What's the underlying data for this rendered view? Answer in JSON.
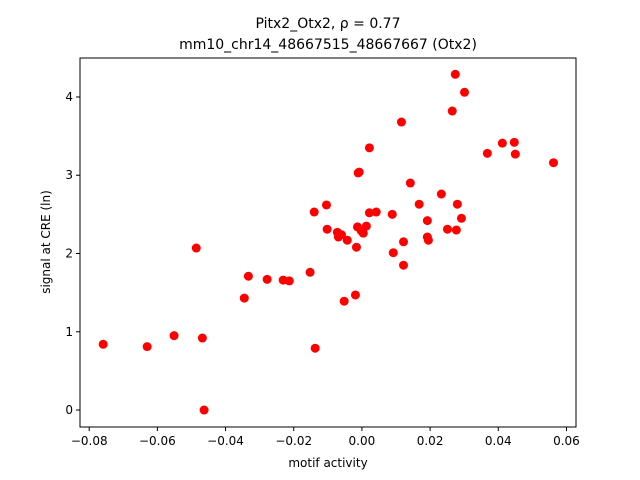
{
  "chart_data": {
    "type": "scatter",
    "title": "Pitx2_Otx2, ρ = 0.77",
    "subtitle": "mm10_chr14_48667515_48667667 (Otx2)",
    "x_label": "motif activity",
    "y_label": "signal at CRE (ln)",
    "color": "#ff0000",
    "xlim": [
      -0.0827,
      0.0628
    ],
    "ylim": [
      -0.217,
      4.498
    ],
    "xticks": [
      {
        "value": -0.08,
        "label": "−0.08"
      },
      {
        "value": -0.06,
        "label": "−0.06"
      },
      {
        "value": -0.04,
        "label": "−0.04"
      },
      {
        "value": -0.02,
        "label": "−0.02"
      },
      {
        "value": 0,
        "label": "0.00"
      },
      0.02,
      0.04,
      0.06
    ],
    "yticks": [
      0,
      1,
      2,
      3,
      4
    ],
    "x": [
      -0.0759,
      -0.063,
      -0.0551,
      -0.0468,
      -0.0463,
      -0.0486,
      -0.0345,
      -0.0333,
      -0.0278,
      -0.0231,
      -0.0213,
      -0.0152,
      -0.014,
      -0.0137,
      -0.0104,
      -0.0102,
      -0.0072,
      -0.0069,
      -0.006,
      -0.0043,
      -0.0052,
      -0.0019,
      -0.0016,
      -0.0013,
      -0.0011,
      -0.0008,
      -0.0002,
      0.0004,
      0.0013,
      0.0022,
      0.0022,
      0.0042,
      0.0089,
      0.0092,
      0.0116,
      0.0122,
      0.0122,
      0.0142,
      0.0168,
      0.0192,
      0.0192,
      0.0195,
      0.0233,
      0.0251,
      0.0265,
      0.0274,
      0.0277,
      0.028,
      0.0292,
      0.0301,
      0.0368,
      0.0412,
      0.0447,
      0.045,
      0.0562
    ],
    "values": [
      0.84,
      0.81,
      0.95,
      0.92,
      0.0,
      2.07,
      1.43,
      1.71,
      1.67,
      1.66,
      1.65,
      1.76,
      2.53,
      0.79,
      2.62,
      2.31,
      2.27,
      2.21,
      2.24,
      2.17,
      1.39,
      1.47,
      2.08,
      2.34,
      3.03,
      3.04,
      2.29,
      2.26,
      2.35,
      2.52,
      3.35,
      2.53,
      2.5,
      2.01,
      3.68,
      2.15,
      1.85,
      2.9,
      2.63,
      2.42,
      2.21,
      2.17,
      2.76,
      2.31,
      3.82,
      4.29,
      2.3,
      2.63,
      2.45,
      4.06,
      3.28,
      3.41,
      3.42,
      3.27,
      3.16
    ]
  }
}
